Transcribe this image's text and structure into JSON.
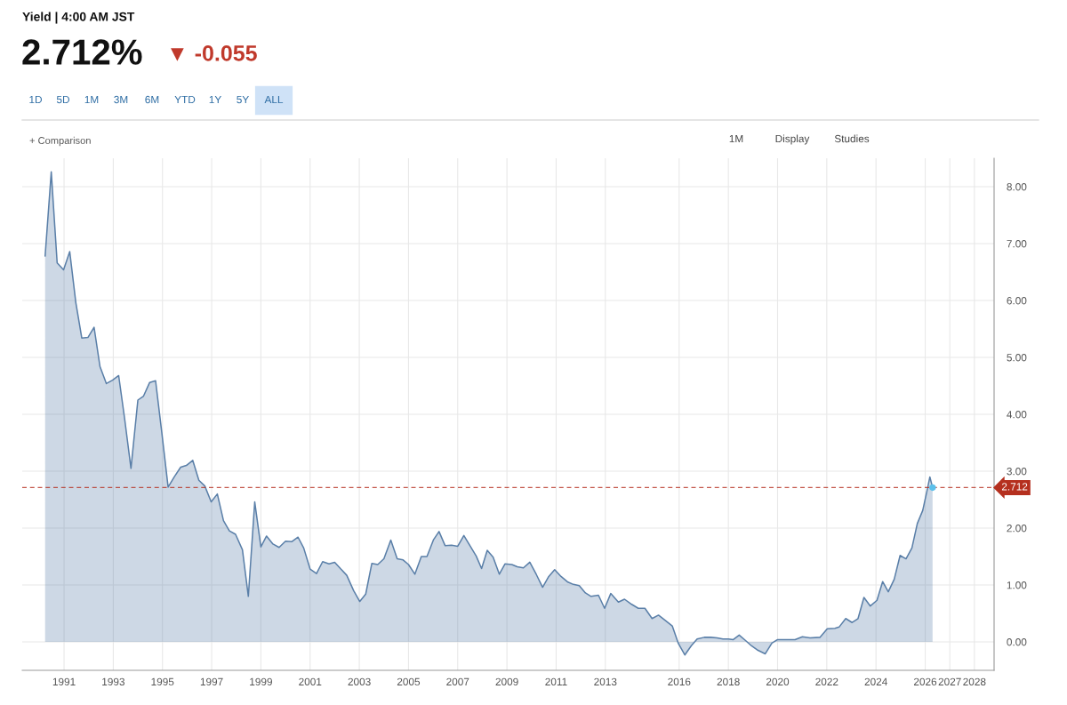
{
  "chart_data": {
    "type": "area",
    "title": "Yield | 4:00 AM JST",
    "annotations": [
      "2.712%",
      "▼ -0.055",
      "1D",
      "5D",
      "1M",
      "3M",
      "6M",
      "YTD",
      "1Y",
      "5Y",
      "ALL",
      "+ Comparison",
      "1M",
      "Display",
      "Studies"
    ],
    "xlim": [
      1989.3,
      2028.8
    ],
    "ylim": [
      -0.5,
      8.5
    ],
    "xticks": [
      1991,
      1993,
      1995,
      1997,
      1999,
      2001,
      2003,
      2005,
      2007,
      2009,
      2011,
      2013,
      2016,
      2018,
      2020,
      2022,
      2024,
      2026,
      2027,
      2028
    ],
    "yticks": [
      {
        "value": 0,
        "label": "0.00"
      },
      {
        "value": 1,
        "label": "1.00"
      },
      {
        "value": 2,
        "label": "2.00"
      },
      {
        "value": 3,
        "label": "3.00"
      },
      {
        "value": 4,
        "label": "4.00"
      },
      {
        "value": 5,
        "label": "5.00"
      },
      {
        "value": 6,
        "label": "6.00"
      },
      {
        "value": 7,
        "label": "7.00"
      },
      {
        "value": 8,
        "label": "8.00"
      }
    ],
    "grid": true,
    "ref_lines": [
      {
        "axis": "y",
        "value": 2.712,
        "label": "2.712",
        "color": "#b5301f",
        "line_style": "dashed"
      }
    ],
    "series": [
      {
        "color": "#5a7fa8",
        "x": [
          1990.23,
          1990.48,
          1990.72,
          1990.98,
          1991.23,
          1991.48,
          1991.72,
          1991.97,
          1992.22,
          1992.46,
          1992.72,
          1992.97,
          1993.22,
          1993.46,
          1993.72,
          1994.0,
          1994.23,
          1994.48,
          1994.72,
          1994.97,
          1995.23,
          1995.48,
          1995.74,
          1995.97,
          1996.23,
          1996.48,
          1996.72,
          1996.98,
          1997.23,
          1997.48,
          1997.72,
          1997.97,
          1998.25,
          1998.49,
          1998.75,
          1999.0,
          1999.23,
          1999.49,
          1999.74,
          2000.0,
          2000.25,
          2000.51,
          2000.74,
          2001.0,
          2001.26,
          2001.51,
          2001.77,
          2002.0,
          2002.25,
          2002.49,
          2002.77,
          2003.02,
          2003.26,
          2003.51,
          2003.75,
          2004.0,
          2004.28,
          2004.54,
          2004.78,
          2005.0,
          2005.26,
          2005.52,
          2005.75,
          2006.01,
          2006.24,
          2006.49,
          2006.74,
          2007.0,
          2007.25,
          2007.5,
          2007.75,
          2007.97,
          2008.2,
          2008.44,
          2008.69,
          2008.92,
          2009.2,
          2009.42,
          2009.67,
          2009.93,
          2010.2,
          2010.45,
          2010.7,
          2010.94,
          2011.2,
          2011.48,
          2011.7,
          2011.94,
          2012.19,
          2012.42,
          2012.72,
          2012.97,
          2013.22,
          2013.53,
          2013.78,
          2014.07,
          2014.34,
          2014.61,
          2014.9,
          2015.16,
          2015.46,
          2015.72,
          2015.97,
          2016.23,
          2016.49,
          2016.73,
          2017.02,
          2017.28,
          2017.54,
          2017.78,
          2018.0,
          2018.2,
          2018.44,
          2018.71,
          2018.94,
          2019.17,
          2019.5,
          2019.77,
          2020.0,
          2020.31,
          2020.71,
          2021.01,
          2021.32,
          2021.72,
          2022.02,
          2022.33,
          2022.5,
          2022.77,
          2023.03,
          2023.27,
          2023.51,
          2023.77,
          2024.04,
          2024.27,
          2024.5,
          2024.74,
          2024.98,
          2025.22,
          2025.46,
          2025.68,
          2025.9,
          2026.09,
          2026.19,
          2026.3
        ],
        "values": [
          6.78,
          8.26,
          6.66,
          6.54,
          6.86,
          5.96,
          5.34,
          5.35,
          5.53,
          4.84,
          4.54,
          4.6,
          4.68,
          3.93,
          3.05,
          4.25,
          4.32,
          4.56,
          4.59,
          3.69,
          2.72,
          2.9,
          3.07,
          3.1,
          3.19,
          2.84,
          2.74,
          2.46,
          2.6,
          2.13,
          1.95,
          1.89,
          1.62,
          0.8,
          2.46,
          1.67,
          1.86,
          1.72,
          1.66,
          1.77,
          1.76,
          1.84,
          1.65,
          1.28,
          1.2,
          1.41,
          1.37,
          1.4,
          1.28,
          1.17,
          0.9,
          0.71,
          0.84,
          1.38,
          1.36,
          1.46,
          1.79,
          1.46,
          1.44,
          1.36,
          1.19,
          1.5,
          1.5,
          1.79,
          1.94,
          1.69,
          1.7,
          1.68,
          1.87,
          1.69,
          1.51,
          1.29,
          1.61,
          1.49,
          1.19,
          1.37,
          1.36,
          1.32,
          1.3,
          1.4,
          1.18,
          0.96,
          1.15,
          1.27,
          1.15,
          1.05,
          1.01,
          0.99,
          0.86,
          0.8,
          0.82,
          0.59,
          0.85,
          0.7,
          0.75,
          0.66,
          0.59,
          0.59,
          0.41,
          0.47,
          0.37,
          0.28,
          -0.03,
          -0.23,
          -0.07,
          0.05,
          0.08,
          0.08,
          0.07,
          0.05,
          0.05,
          0.04,
          0.12,
          0.02,
          -0.07,
          -0.14,
          -0.21,
          -0.02,
          0.04,
          0.04,
          0.04,
          0.09,
          0.07,
          0.08,
          0.23,
          0.24,
          0.26,
          0.41,
          0.34,
          0.41,
          0.78,
          0.63,
          0.73,
          1.06,
          0.88,
          1.1,
          1.52,
          1.46,
          1.65,
          2.08,
          2.31,
          2.69,
          2.9,
          2.712
        ]
      },
      {
        "type": "scatter",
        "color": "#5bc0eb",
        "x": [
          2026.3
        ],
        "values": [
          2.712
        ]
      }
    ]
  }
}
